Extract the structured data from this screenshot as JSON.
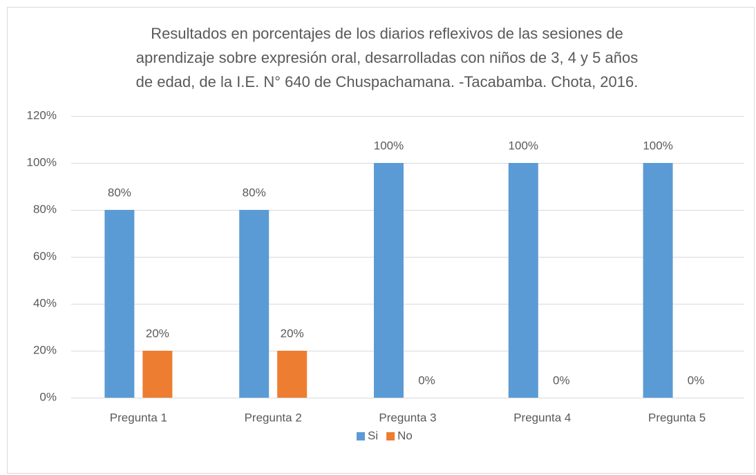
{
  "chart_data": {
    "type": "bar",
    "title": [
      "Resultados en porcentajes de los diarios reflexivos de las sesiones de",
      "aprendizaje sobre expresión oral, desarrolladas con niños de 3, 4 y 5 años",
      "de edad, de la I.E. N° 640 de Chuspachamana. -Tacabamba. Chota, 2016."
    ],
    "categories": [
      "Pregunta 1",
      "Pregunta 2",
      "Pregunta 3",
      "Pregunta 4",
      "Pregunta 5"
    ],
    "series": [
      {
        "name": "Si",
        "color": "#5b9bd5",
        "values": [
          80,
          80,
          100,
          100,
          100
        ],
        "value_labels": [
          "80%",
          "80%",
          "100%",
          "100%",
          "100%"
        ]
      },
      {
        "name": "No",
        "color": "#ed7d31",
        "values": [
          20,
          20,
          0,
          0,
          0
        ],
        "value_labels": [
          "20%",
          "20%",
          "0%",
          "0%",
          "0%"
        ]
      }
    ],
    "ylim": [
      0,
      120
    ],
    "yticks": [
      {
        "value": 0,
        "label": "0%"
      },
      {
        "value": 20,
        "label": "20%"
      },
      {
        "value": 40,
        "label": "40%"
      },
      {
        "value": 60,
        "label": "60%"
      },
      {
        "value": 80,
        "label": "80%"
      },
      {
        "value": 100,
        "label": "100%"
      },
      {
        "value": 120,
        "label": "120%"
      }
    ],
    "grid": true,
    "legend": "bottom"
  }
}
